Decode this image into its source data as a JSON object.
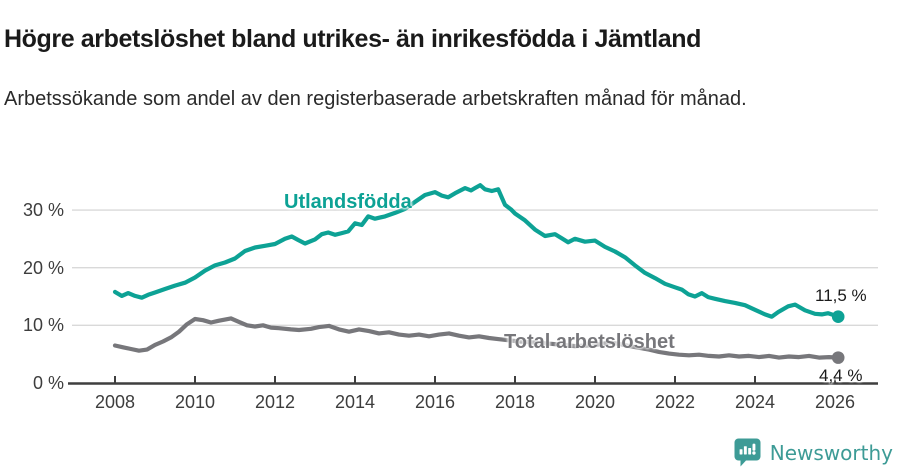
{
  "chart_data": {
    "type": "line",
    "title": "Högre arbetslöshet bland utrikes- än inrikesfödda i Jämtland",
    "subtitle": "Arbetssökande som andel av den registerbaserade arbetskraften månad för månad.",
    "grid": true,
    "colors": {
      "grid": "#d9d9d9",
      "axis": "#3f3f3f",
      "background": "#ffffff"
    },
    "x_axis": {
      "range": [
        2007.5,
        2027.2
      ],
      "ticks": [
        {
          "v": 2008,
          "label": "2008"
        },
        {
          "v": 2010,
          "label": "2010"
        },
        {
          "v": 2012,
          "label": "2012"
        },
        {
          "v": 2014,
          "label": "2014"
        },
        {
          "v": 2016,
          "label": "2016"
        },
        {
          "v": 2018,
          "label": "2018"
        },
        {
          "v": 2020,
          "label": "2020"
        },
        {
          "v": 2022,
          "label": "2022"
        },
        {
          "v": 2024,
          "label": "2024"
        },
        {
          "v": 2026,
          "label": "2026"
        }
      ]
    },
    "y_axis": {
      "unit": "%",
      "range": [
        0,
        36
      ],
      "ticks": [
        {
          "v": 0,
          "label": "0 %"
        },
        {
          "v": 10,
          "label": "10 %"
        },
        {
          "v": 20,
          "label": "20 %"
        },
        {
          "v": 30,
          "label": "30 %"
        }
      ]
    },
    "series": [
      {
        "name": "Utlandsfödda",
        "color": "#0da295",
        "end_label": "11,5 %",
        "end_value": 11.5,
        "points": [
          [
            2008.0,
            15.8
          ],
          [
            2008.17,
            15.1
          ],
          [
            2008.33,
            15.6
          ],
          [
            2008.5,
            15.1
          ],
          [
            2008.67,
            14.8
          ],
          [
            2008.83,
            15.3
          ],
          [
            2009.0,
            15.7
          ],
          [
            2009.25,
            16.3
          ],
          [
            2009.5,
            16.9
          ],
          [
            2009.75,
            17.4
          ],
          [
            2010.0,
            18.3
          ],
          [
            2010.25,
            19.5
          ],
          [
            2010.5,
            20.4
          ],
          [
            2010.75,
            20.9
          ],
          [
            2011.0,
            21.6
          ],
          [
            2011.25,
            22.9
          ],
          [
            2011.5,
            23.5
          ],
          [
            2011.75,
            23.8
          ],
          [
            2012.0,
            24.1
          ],
          [
            2012.25,
            25.0
          ],
          [
            2012.42,
            25.4
          ],
          [
            2012.58,
            24.8
          ],
          [
            2012.75,
            24.2
          ],
          [
            2013.0,
            24.9
          ],
          [
            2013.17,
            25.8
          ],
          [
            2013.33,
            26.1
          ],
          [
            2013.5,
            25.7
          ],
          [
            2013.67,
            26.0
          ],
          [
            2013.83,
            26.3
          ],
          [
            2014.0,
            27.7
          ],
          [
            2014.17,
            27.4
          ],
          [
            2014.33,
            28.9
          ],
          [
            2014.5,
            28.5
          ],
          [
            2014.75,
            28.9
          ],
          [
            2015.0,
            29.5
          ],
          [
            2015.25,
            30.2
          ],
          [
            2015.5,
            31.4
          ],
          [
            2015.75,
            32.6
          ],
          [
            2016.0,
            33.1
          ],
          [
            2016.17,
            32.5
          ],
          [
            2016.33,
            32.2
          ],
          [
            2016.5,
            32.9
          ],
          [
            2016.75,
            33.8
          ],
          [
            2016.9,
            33.4
          ],
          [
            2017.0,
            33.8
          ],
          [
            2017.13,
            34.3
          ],
          [
            2017.25,
            33.6
          ],
          [
            2017.42,
            33.3
          ],
          [
            2017.58,
            33.6
          ],
          [
            2017.75,
            30.9
          ],
          [
            2017.9,
            30.1
          ],
          [
            2018.0,
            29.4
          ],
          [
            2018.25,
            28.2
          ],
          [
            2018.5,
            26.6
          ],
          [
            2018.75,
            25.5
          ],
          [
            2019.0,
            25.8
          ],
          [
            2019.17,
            25.1
          ],
          [
            2019.33,
            24.4
          ],
          [
            2019.5,
            25.0
          ],
          [
            2019.75,
            24.5
          ],
          [
            2020.0,
            24.7
          ],
          [
            2020.25,
            23.6
          ],
          [
            2020.5,
            22.8
          ],
          [
            2020.75,
            21.8
          ],
          [
            2021.0,
            20.4
          ],
          [
            2021.25,
            19.1
          ],
          [
            2021.5,
            18.2
          ],
          [
            2021.75,
            17.2
          ],
          [
            2022.0,
            16.6
          ],
          [
            2022.17,
            16.2
          ],
          [
            2022.33,
            15.4
          ],
          [
            2022.5,
            15.0
          ],
          [
            2022.67,
            15.6
          ],
          [
            2022.83,
            14.9
          ],
          [
            2023.0,
            14.6
          ],
          [
            2023.25,
            14.2
          ],
          [
            2023.5,
            13.9
          ],
          [
            2023.75,
            13.5
          ],
          [
            2024.0,
            12.7
          ],
          [
            2024.25,
            11.9
          ],
          [
            2024.42,
            11.5
          ],
          [
            2024.58,
            12.3
          ],
          [
            2024.83,
            13.3
          ],
          [
            2025.0,
            13.6
          ],
          [
            2025.25,
            12.6
          ],
          [
            2025.5,
            12.0
          ],
          [
            2025.67,
            11.9
          ],
          [
            2025.83,
            12.1
          ],
          [
            2026.0,
            11.7
          ],
          [
            2026.08,
            11.5
          ]
        ]
      },
      {
        "name": "Total arbetslöshet",
        "color": "#77777b",
        "end_label": "4,4 %",
        "end_value": 4.4,
        "points": [
          [
            2008.0,
            6.5
          ],
          [
            2008.2,
            6.2
          ],
          [
            2008.4,
            5.9
          ],
          [
            2008.6,
            5.6
          ],
          [
            2008.8,
            5.8
          ],
          [
            2009.0,
            6.6
          ],
          [
            2009.2,
            7.2
          ],
          [
            2009.4,
            7.9
          ],
          [
            2009.6,
            8.9
          ],
          [
            2009.8,
            10.2
          ],
          [
            2010.0,
            11.1
          ],
          [
            2010.2,
            10.9
          ],
          [
            2010.4,
            10.5
          ],
          [
            2010.6,
            10.8
          ],
          [
            2010.9,
            11.2
          ],
          [
            2011.1,
            10.6
          ],
          [
            2011.3,
            10.0
          ],
          [
            2011.5,
            9.8
          ],
          [
            2011.7,
            10.0
          ],
          [
            2011.9,
            9.6
          ],
          [
            2012.1,
            9.5
          ],
          [
            2012.4,
            9.3
          ],
          [
            2012.6,
            9.2
          ],
          [
            2012.9,
            9.4
          ],
          [
            2013.1,
            9.7
          ],
          [
            2013.35,
            9.9
          ],
          [
            2013.6,
            9.3
          ],
          [
            2013.85,
            8.9
          ],
          [
            2014.1,
            9.3
          ],
          [
            2014.35,
            9.0
          ],
          [
            2014.6,
            8.6
          ],
          [
            2014.85,
            8.8
          ],
          [
            2015.1,
            8.4
          ],
          [
            2015.35,
            8.2
          ],
          [
            2015.6,
            8.4
          ],
          [
            2015.85,
            8.1
          ],
          [
            2016.1,
            8.4
          ],
          [
            2016.35,
            8.6
          ],
          [
            2016.6,
            8.2
          ],
          [
            2016.85,
            7.9
          ],
          [
            2017.1,
            8.1
          ],
          [
            2017.35,
            7.8
          ],
          [
            2017.6,
            7.6
          ],
          [
            2017.85,
            7.4
          ],
          [
            2018.1,
            7.2
          ],
          [
            2018.5,
            7.0
          ],
          [
            2018.9,
            6.8
          ],
          [
            2019.2,
            6.6
          ],
          [
            2019.5,
            6.4
          ],
          [
            2019.8,
            6.5
          ],
          [
            2020.1,
            6.7
          ],
          [
            2020.35,
            7.0
          ],
          [
            2020.6,
            6.8
          ],
          [
            2020.85,
            6.4
          ],
          [
            2021.1,
            6.1
          ],
          [
            2021.35,
            5.8
          ],
          [
            2021.6,
            5.4
          ],
          [
            2021.85,
            5.1
          ],
          [
            2022.1,
            4.9
          ],
          [
            2022.35,
            4.8
          ],
          [
            2022.6,
            4.9
          ],
          [
            2022.85,
            4.7
          ],
          [
            2023.1,
            4.6
          ],
          [
            2023.35,
            4.8
          ],
          [
            2023.6,
            4.6
          ],
          [
            2023.85,
            4.7
          ],
          [
            2024.1,
            4.5
          ],
          [
            2024.35,
            4.7
          ],
          [
            2024.6,
            4.4
          ],
          [
            2024.85,
            4.6
          ],
          [
            2025.1,
            4.5
          ],
          [
            2025.35,
            4.7
          ],
          [
            2025.6,
            4.4
          ],
          [
            2025.85,
            4.5
          ],
          [
            2026.08,
            4.4
          ]
        ]
      }
    ],
    "legend_position": "inline-labels"
  },
  "footer": {
    "brand": "Newsworthy",
    "brand_color": "#3d9b96"
  }
}
